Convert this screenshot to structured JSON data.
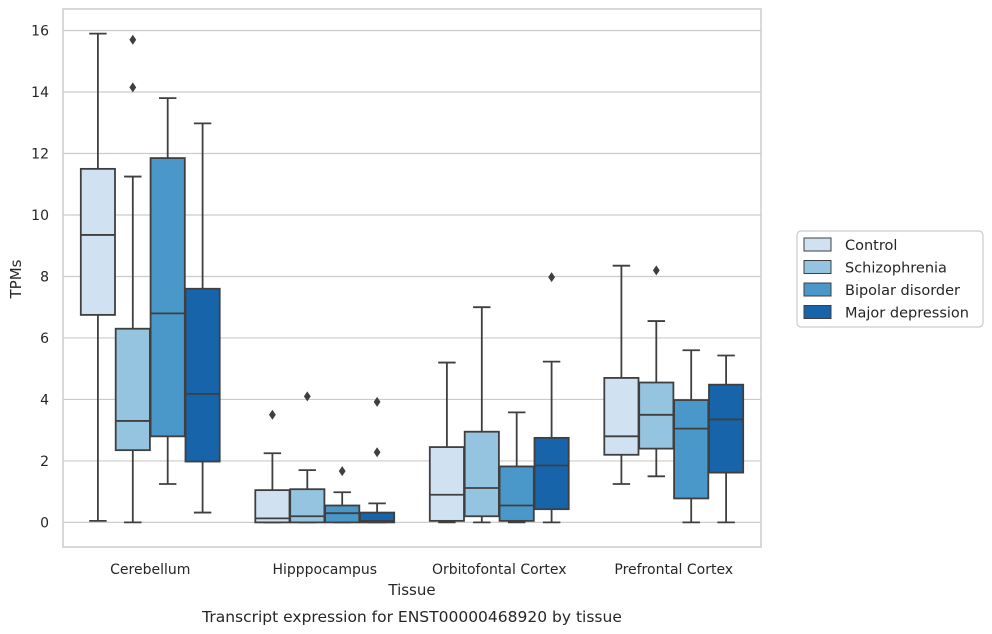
{
  "chart_data": {
    "type": "box",
    "xlabel": "Tissue",
    "ylabel": "TPMs",
    "caption": "Transcript expression for ENST00000468920 by tissue",
    "ylim": [
      -0.8,
      16.7
    ],
    "yticks": [
      0,
      2,
      4,
      6,
      8,
      10,
      12,
      14,
      16
    ],
    "grid": "horizontal",
    "legend_position": "right",
    "categories": [
      "Cerebellum",
      "Hipppocampus",
      "Orbitofontal Cortex",
      "Prefrontal Cortex"
    ],
    "series": [
      {
        "name": "Control",
        "color": "#d0e1f2",
        "boxes": [
          {
            "min": 0.05,
            "q1": 6.75,
            "median": 9.35,
            "q3": 11.5,
            "max": 15.9,
            "outliers": []
          },
          {
            "min": 0.0,
            "q1": 0.0,
            "median": 0.13,
            "q3": 1.05,
            "max": 2.25,
            "outliers": [
              3.5
            ]
          },
          {
            "min": 0.0,
            "q1": 0.05,
            "median": 0.9,
            "q3": 2.45,
            "max": 5.2,
            "outliers": []
          },
          {
            "min": 1.25,
            "q1": 2.2,
            "median": 2.8,
            "q3": 4.7,
            "max": 8.35,
            "outliers": []
          }
        ]
      },
      {
        "name": "Schizophrenia",
        "color": "#94c4df",
        "boxes": [
          {
            "min": 0.0,
            "q1": 2.35,
            "median": 3.3,
            "q3": 6.3,
            "max": 11.25,
            "outliers": [
              15.7,
              14.15
            ]
          },
          {
            "min": 0.0,
            "q1": 0.0,
            "median": 0.2,
            "q3": 1.08,
            "max": 1.7,
            "outliers": [
              4.1
            ]
          },
          {
            "min": 0.0,
            "q1": 0.2,
            "median": 1.12,
            "q3": 2.95,
            "max": 7.0,
            "outliers": []
          },
          {
            "min": 1.5,
            "q1": 2.4,
            "median": 3.5,
            "q3": 4.55,
            "max": 6.55,
            "outliers": [
              8.2
            ]
          }
        ]
      },
      {
        "name": "Bipolar disorder",
        "color": "#4a98c9",
        "boxes": [
          {
            "min": 1.25,
            "q1": 2.8,
            "median": 6.8,
            "q3": 11.85,
            "max": 13.8,
            "outliers": []
          },
          {
            "min": 0.0,
            "q1": 0.0,
            "median": 0.3,
            "q3": 0.55,
            "max": 0.98,
            "outliers": [
              1.67
            ]
          },
          {
            "min": 0.0,
            "q1": 0.05,
            "median": 0.55,
            "q3": 1.82,
            "max": 3.58,
            "outliers": []
          },
          {
            "min": 0.0,
            "q1": 0.78,
            "median": 3.05,
            "q3": 3.98,
            "max": 5.6,
            "outliers": []
          }
        ]
      },
      {
        "name": "Major depression",
        "color": "#1764ab",
        "boxes": [
          {
            "min": 0.32,
            "q1": 1.98,
            "median": 4.18,
            "q3": 7.6,
            "max": 12.98,
            "outliers": []
          },
          {
            "min": 0.0,
            "q1": 0.0,
            "median": 0.05,
            "q3": 0.32,
            "max": 0.62,
            "outliers": [
              3.92,
              2.28
            ]
          },
          {
            "min": 0.0,
            "q1": 0.43,
            "median": 1.85,
            "q3": 2.75,
            "max": 5.23,
            "outliers": [
              7.98
            ]
          },
          {
            "min": 0.0,
            "q1": 1.62,
            "median": 3.35,
            "q3": 4.48,
            "max": 5.43,
            "outliers": []
          }
        ]
      }
    ]
  }
}
